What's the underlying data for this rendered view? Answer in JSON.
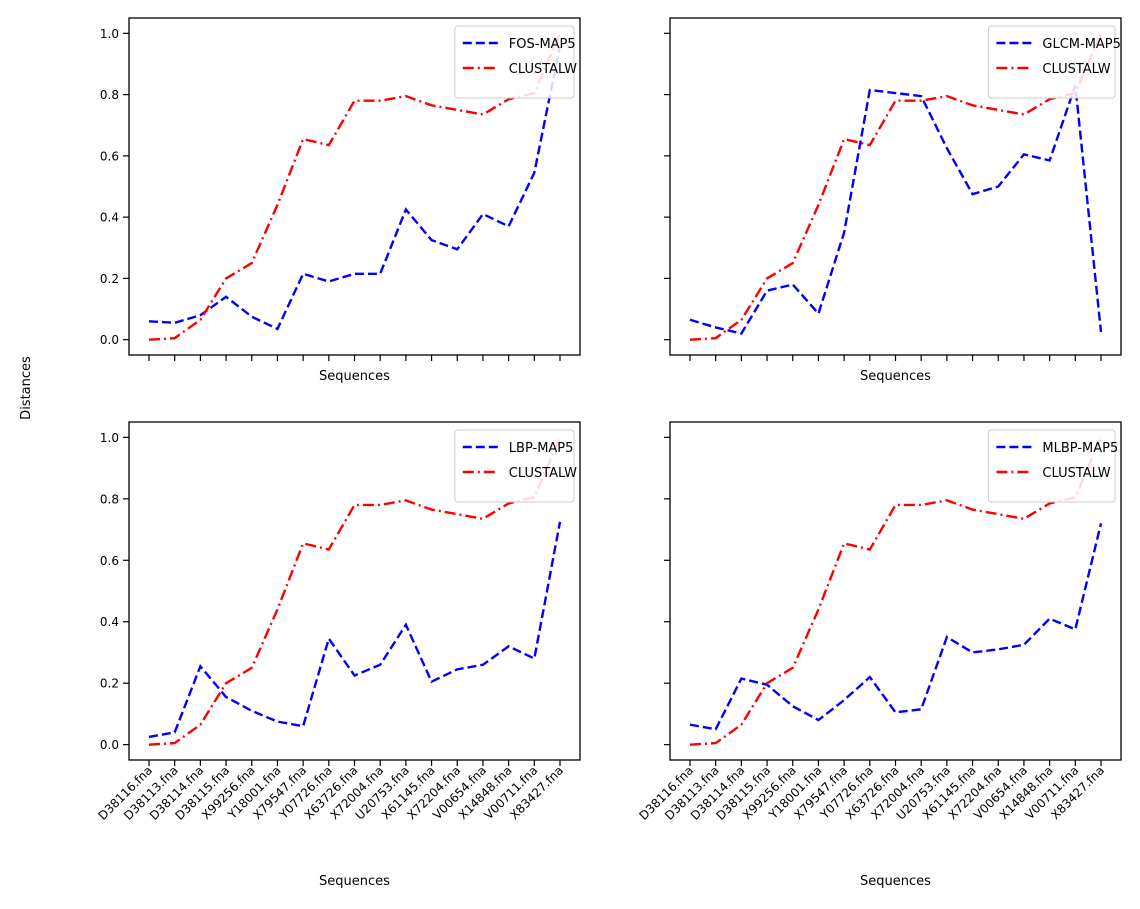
{
  "figure": {
    "ylabel": "Distances"
  },
  "chart_data": [
    {
      "type": "line",
      "xlabel": "Sequences",
      "categories": [
        "D38116.fna",
        "D38113.fna",
        "D38114.fna",
        "D38115.fna",
        "X99256.fna",
        "Y18001.fna",
        "X79547.fna",
        "Y07726.fna",
        "X63726.fna",
        "X72004.fna",
        "U20753.fna",
        "X61145.fna",
        "X72204.fna",
        "V00654.fna",
        "X14848.fna",
        "V00711.fna",
        "X83427.fna"
      ],
      "show_xticklabels": false,
      "ylim": [
        -0.05,
        1.05
      ],
      "yticks": [
        "0.0",
        "0.2",
        "0.4",
        "0.6",
        "0.8",
        "1.0"
      ],
      "legend": "top-right",
      "series": [
        {
          "name": "FOS-MAP5",
          "color": "#0000ff",
          "dash": "dashed",
          "values": [
            0.06,
            0.055,
            0.08,
            0.14,
            0.075,
            0.035,
            0.215,
            0.19,
            0.215,
            0.215,
            0.425,
            0.325,
            0.295,
            0.41,
            0.37,
            0.545,
            0.96
          ]
        },
        {
          "name": "CLUSTALW",
          "color": "#ff0000",
          "dash": "dashdot",
          "values": [
            0.0,
            0.005,
            0.065,
            0.2,
            0.25,
            0.44,
            0.655,
            0.635,
            0.78,
            0.78,
            0.795,
            0.765,
            0.75,
            0.735,
            0.785,
            0.805,
            1.0
          ]
        }
      ]
    },
    {
      "type": "line",
      "xlabel": "Sequences",
      "categories": [
        "D38116.fna",
        "D38113.fna",
        "D38114.fna",
        "D38115.fna",
        "X99256.fna",
        "Y18001.fna",
        "X79547.fna",
        "Y07726.fna",
        "X63726.fna",
        "X72004.fna",
        "U20753.fna",
        "X61145.fna",
        "X72204.fna",
        "V00654.fna",
        "X14848.fna",
        "V00711.fna",
        "X83427.fna"
      ],
      "show_xticklabels": false,
      "ylim": [
        -0.05,
        1.05
      ],
      "yticks": [],
      "legend": "top-right",
      "series": [
        {
          "name": "GLCM-MAP5",
          "color": "#0000ff",
          "dash": "dashed",
          "values": [
            0.065,
            0.04,
            0.02,
            0.16,
            0.18,
            0.085,
            0.35,
            0.815,
            0.805,
            0.795,
            0.625,
            0.475,
            0.5,
            0.605,
            0.585,
            0.83,
            0.025
          ]
        },
        {
          "name": "CLUSTALW",
          "color": "#ff0000",
          "dash": "dashdot",
          "values": [
            0.0,
            0.005,
            0.065,
            0.2,
            0.25,
            0.44,
            0.655,
            0.635,
            0.78,
            0.78,
            0.795,
            0.765,
            0.75,
            0.735,
            0.785,
            0.805,
            1.0
          ]
        }
      ]
    },
    {
      "type": "line",
      "xlabel": "Sequences",
      "categories": [
        "D38116.fna",
        "D38113.fna",
        "D38114.fna",
        "D38115.fna",
        "X99256.fna",
        "Y18001.fna",
        "X79547.fna",
        "Y07726.fna",
        "X63726.fna",
        "X72004.fna",
        "U20753.fna",
        "X61145.fna",
        "X72204.fna",
        "V00654.fna",
        "X14848.fna",
        "V00711.fna",
        "X83427.fna"
      ],
      "show_xticklabels": true,
      "ylim": [
        -0.05,
        1.05
      ],
      "yticks": [
        "0.0",
        "0.2",
        "0.4",
        "0.6",
        "0.8",
        "1.0"
      ],
      "legend": "top-right",
      "series": [
        {
          "name": "LBP-MAP5",
          "color": "#0000ff",
          "dash": "dashed",
          "values": [
            0.025,
            0.04,
            0.255,
            0.155,
            0.11,
            0.075,
            0.06,
            0.345,
            0.225,
            0.26,
            0.39,
            0.205,
            0.245,
            0.26,
            0.32,
            0.28,
            0.725
          ]
        },
        {
          "name": "CLUSTALW",
          "color": "#ff0000",
          "dash": "dashdot",
          "values": [
            0.0,
            0.005,
            0.065,
            0.2,
            0.25,
            0.44,
            0.655,
            0.635,
            0.78,
            0.78,
            0.795,
            0.765,
            0.75,
            0.735,
            0.785,
            0.805,
            1.0
          ]
        }
      ]
    },
    {
      "type": "line",
      "xlabel": "Sequences",
      "categories": [
        "D38116.fna",
        "D38113.fna",
        "D38114.fna",
        "D38115.fna",
        "X99256.fna",
        "Y18001.fna",
        "X79547.fna",
        "Y07726.fna",
        "X63726.fna",
        "X72004.fna",
        "U20753.fna",
        "X61145.fna",
        "X72204.fna",
        "V00654.fna",
        "X14848.fna",
        "V00711.fna",
        "X83427.fna"
      ],
      "show_xticklabels": true,
      "ylim": [
        -0.05,
        1.05
      ],
      "yticks": [],
      "legend": "top-right",
      "series": [
        {
          "name": "MLBP-MAP5",
          "color": "#0000ff",
          "dash": "dashed",
          "values": [
            0.065,
            0.05,
            0.215,
            0.195,
            0.125,
            0.08,
            0.145,
            0.22,
            0.105,
            0.115,
            0.35,
            0.3,
            0.31,
            0.325,
            0.41,
            0.375,
            0.72
          ]
        },
        {
          "name": "CLUSTALW",
          "color": "#ff0000",
          "dash": "dashdot",
          "values": [
            0.0,
            0.005,
            0.065,
            0.2,
            0.25,
            0.44,
            0.655,
            0.635,
            0.78,
            0.78,
            0.795,
            0.765,
            0.75,
            0.735,
            0.785,
            0.805,
            1.0
          ]
        }
      ]
    }
  ]
}
